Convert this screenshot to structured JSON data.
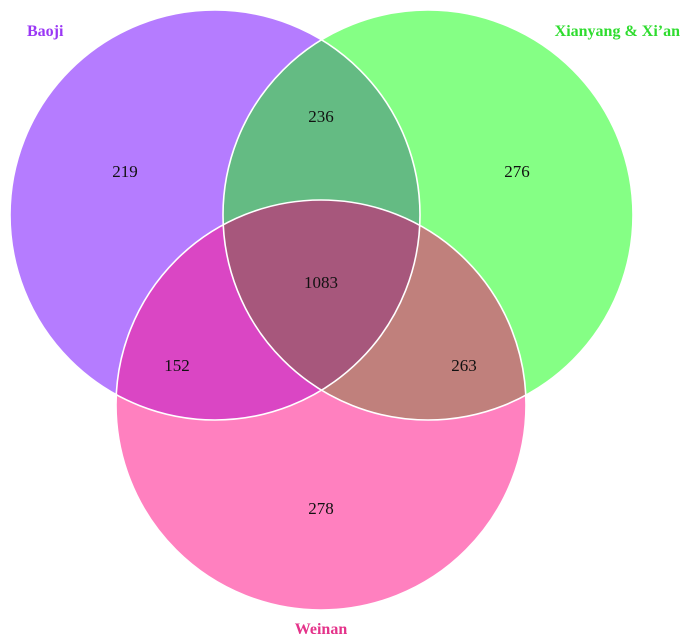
{
  "sets": [
    {
      "key": "baoji",
      "name": "Baoji",
      "fill": "#b57cff",
      "label_color": "#9a37f5"
    },
    {
      "key": "xianyang",
      "name": "Xianyang & Xi’an",
      "fill": "#85ff85",
      "label_color": "#2fdc2f"
    },
    {
      "key": "weinan",
      "name": "Weinan",
      "fill": "#ff80bf",
      "label_color": "#e4338a"
    }
  ],
  "regions": {
    "baoji_only": {
      "value": "219",
      "color": "#b57cff"
    },
    "xianyang_only": {
      "value": "276",
      "color": "#85ff85"
    },
    "weinan_only": {
      "value": "278",
      "color": "#ff80bf"
    },
    "baoji_xianyang": {
      "value": "236",
      "color": "#64bb83"
    },
    "baoji_weinan": {
      "value": "152",
      "color": "#da46c4"
    },
    "xianyang_weinan": {
      "value": "263",
      "color": "#c0807c"
    },
    "all_three": {
      "value": "1083",
      "color": "#a7577c"
    }
  },
  "outline_color": "#ffffff"
}
